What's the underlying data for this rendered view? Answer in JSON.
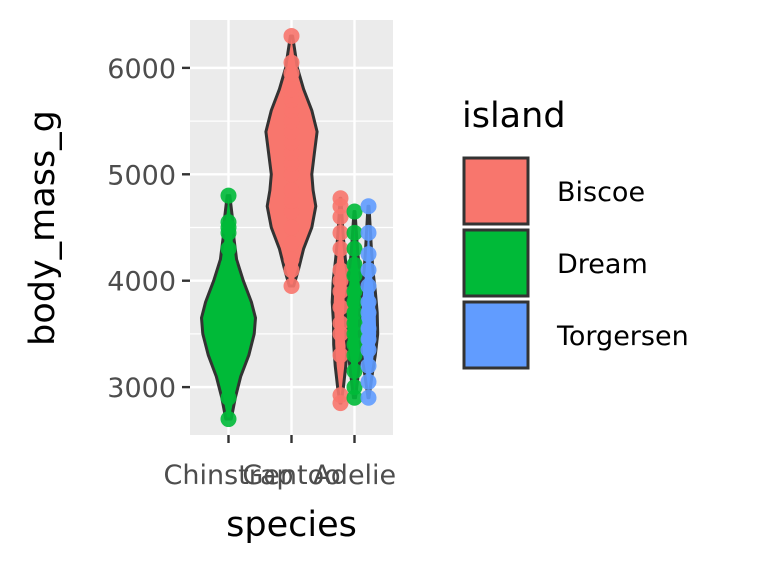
{
  "chart_data": {
    "type": "violin",
    "title": "",
    "xlabel": "species",
    "ylabel": "body_mass_g",
    "ylim": [
      2550,
      6450
    ],
    "yticks": [
      3000,
      4000,
      5000,
      6000
    ],
    "y_tick_labels": [
      "3000",
      "4000",
      "5000",
      "6000"
    ],
    "categories": [
      "Chinstrap",
      "Gentoo",
      "Adelie"
    ],
    "grid": true,
    "legend": {
      "title": "island",
      "position": "right",
      "entries": [
        "Biscoe",
        "Dream",
        "Torgersen"
      ]
    },
    "colors": {
      "Biscoe": "#F8766D",
      "Dream": "#00BA38",
      "Torgersen": "#619CFF",
      "panel_background": "#EBEBEB",
      "grid": "#FFFFFF",
      "outline": "#333333"
    },
    "series": [
      {
        "name": "Dream",
        "category": "Chinstrap",
        "min": 2700,
        "max": 4800,
        "density_profile": [
          [
            2700,
            0.1
          ],
          [
            2900,
            0.25
          ],
          [
            3100,
            0.45
          ],
          [
            3300,
            0.75
          ],
          [
            3500,
            0.95
          ],
          [
            3650,
            1.0
          ],
          [
            3800,
            0.85
          ],
          [
            4000,
            0.55
          ],
          [
            4200,
            0.3
          ],
          [
            4400,
            0.2
          ],
          [
            4600,
            0.14
          ],
          [
            4800,
            0.05
          ]
        ],
        "points": [
          2700,
          2900,
          3250,
          3400,
          3500,
          3600,
          3650,
          3700,
          3750,
          3800,
          3900,
          4050,
          4150,
          4300,
          4450,
          4500,
          4550,
          4800
        ]
      },
      {
        "name": "Biscoe",
        "category": "Gentoo",
        "min": 3950,
        "max": 6300,
        "density_profile": [
          [
            3950,
            0.08
          ],
          [
            4100,
            0.25
          ],
          [
            4300,
            0.45
          ],
          [
            4500,
            0.75
          ],
          [
            4700,
            0.9
          ],
          [
            4850,
            0.8
          ],
          [
            5000,
            0.75
          ],
          [
            5200,
            0.85
          ],
          [
            5400,
            0.95
          ],
          [
            5600,
            0.75
          ],
          [
            5800,
            0.45
          ],
          [
            6000,
            0.22
          ],
          [
            6200,
            0.1
          ],
          [
            6300,
            0.04
          ]
        ],
        "points": [
          3950,
          4100,
          4200,
          4350,
          4500,
          4650,
          4750,
          4850,
          5000,
          5100,
          5200,
          5300,
          5400,
          5500,
          5600,
          5700,
          5800,
          5950,
          6050,
          6300
        ]
      },
      {
        "name": "Biscoe",
        "category": "Adelie",
        "min": 2850,
        "max": 4775,
        "density_profile": [
          [
            2850,
            0.05
          ],
          [
            3000,
            0.3
          ],
          [
            3200,
            0.55
          ],
          [
            3400,
            0.7
          ],
          [
            3600,
            0.72
          ],
          [
            3800,
            0.85
          ],
          [
            4000,
            0.75
          ],
          [
            4200,
            0.5
          ],
          [
            4400,
            0.3
          ],
          [
            4600,
            0.15
          ],
          [
            4775,
            0.04
          ]
        ],
        "points": [
          2850,
          2925,
          3300,
          3500,
          3600,
          3750,
          3900,
          4000,
          4100,
          4300,
          4450,
          4600,
          4700,
          4775
        ]
      },
      {
        "name": "Dream",
        "category": "Adelie",
        "min": 2900,
        "max": 4650,
        "density_profile": [
          [
            2900,
            0.1
          ],
          [
            3050,
            0.3
          ],
          [
            3250,
            0.55
          ],
          [
            3450,
            0.85
          ],
          [
            3650,
            0.95
          ],
          [
            3850,
            0.85
          ],
          [
            4050,
            0.6
          ],
          [
            4250,
            0.35
          ],
          [
            4450,
            0.2
          ],
          [
            4650,
            0.05
          ]
        ],
        "points": [
          2900,
          3000,
          3150,
          3300,
          3400,
          3500,
          3600,
          3700,
          3800,
          3900,
          4050,
          4150,
          4300,
          4450,
          4650
        ]
      },
      {
        "name": "Torgersen",
        "category": "Adelie",
        "min": 2900,
        "max": 4700,
        "density_profile": [
          [
            2900,
            0.05
          ],
          [
            3100,
            0.35
          ],
          [
            3300,
            0.7
          ],
          [
            3500,
            0.95
          ],
          [
            3700,
            0.9
          ],
          [
            3900,
            0.7
          ],
          [
            4100,
            0.45
          ],
          [
            4300,
            0.3
          ],
          [
            4500,
            0.18
          ],
          [
            4700,
            0.05
          ]
        ],
        "points": [
          2900,
          3050,
          3200,
          3350,
          3450,
          3550,
          3700,
          3800,
          3950,
          4100,
          4250,
          4450,
          4700
        ]
      }
    ]
  }
}
